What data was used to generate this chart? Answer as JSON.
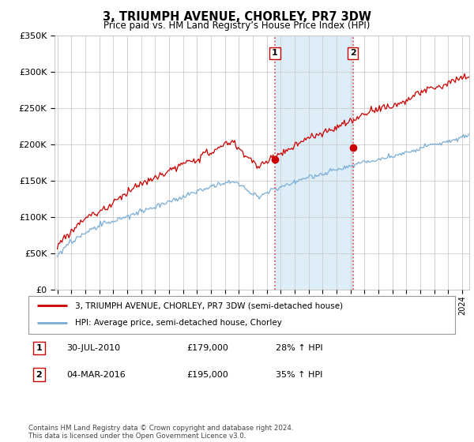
{
  "title": "3, TRIUMPH AVENUE, CHORLEY, PR7 3DW",
  "subtitle": "Price paid vs. HM Land Registry’s House Price Index (HPI)",
  "ylim": [
    0,
    350000
  ],
  "xlim_start": 1994.8,
  "xlim_end": 2024.5,
  "sale1_date": 2010.58,
  "sale1_price": 179000,
  "sale1_label": "1",
  "sale2_date": 2016.17,
  "sale2_price": 195000,
  "sale2_label": "2",
  "legend_property": "3, TRIUMPH AVENUE, CHORLEY, PR7 3DW (semi-detached house)",
  "legend_hpi": "HPI: Average price, semi-detached house, Chorley",
  "footer": "Contains HM Land Registry data © Crown copyright and database right 2024.\nThis data is licensed under the Open Government Licence v3.0.",
  "line_property_color": "#cc0000",
  "line_hpi_color": "#7aadd4",
  "shade_color": "#ddeef8",
  "vline_color": "#dd4444",
  "background_color": "#ffffff",
  "grid_color": "#cccccc"
}
